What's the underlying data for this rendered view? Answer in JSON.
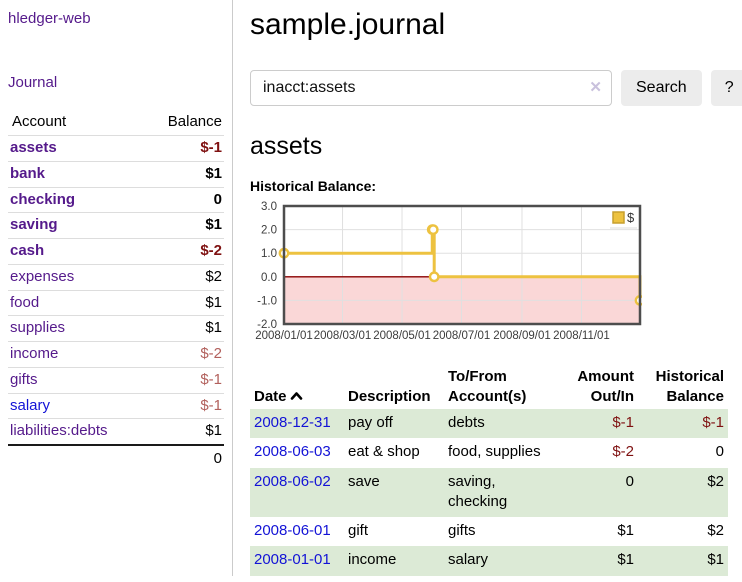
{
  "app": {
    "title": "hledger-web"
  },
  "sidebar": {
    "journal_link": "Journal",
    "accounts_table": {
      "headers": {
        "account": "Account",
        "balance": "Balance"
      },
      "rows": [
        {
          "name": "assets",
          "depth": 1,
          "bold": true,
          "balance": "$-1",
          "neg": "dark"
        },
        {
          "name": "bank",
          "depth": 2,
          "bold": true,
          "balance": "$1",
          "neg": "none"
        },
        {
          "name": "checking",
          "depth": 3,
          "bold": true,
          "balance": "0",
          "neg": "none"
        },
        {
          "name": "saving",
          "depth": 3,
          "bold": true,
          "balance": "$1",
          "neg": "none"
        },
        {
          "name": "cash",
          "depth": 2,
          "bold": true,
          "balance": "$-2",
          "neg": "dark"
        },
        {
          "name": "expenses",
          "depth": 1,
          "bold": false,
          "balance": "$2",
          "neg": "none"
        },
        {
          "name": "food",
          "depth": 2,
          "bold": false,
          "balance": "$1",
          "neg": "none"
        },
        {
          "name": "supplies",
          "depth": 2,
          "bold": false,
          "balance": "$1",
          "neg": "none"
        },
        {
          "name": "income",
          "depth": 1,
          "bold": false,
          "balance": "$-2",
          "neg": "light"
        },
        {
          "name": "gifts",
          "depth": 2,
          "bold": false,
          "balance": "$-1",
          "neg": "light"
        },
        {
          "name": "salary",
          "depth": 2,
          "bold": false,
          "balance": "$-1",
          "neg": "light",
          "link_color": "blue"
        },
        {
          "name": "liabilities:debts",
          "depth": 1,
          "bold": false,
          "balance": "$1",
          "neg": "none"
        }
      ],
      "total": "0"
    }
  },
  "header": {
    "title": "sample.journal"
  },
  "search": {
    "value": "inacct:assets",
    "clear_label": "✕",
    "button_label": "Search",
    "help_label": "?"
  },
  "section": {
    "title": "assets",
    "chart_label": "Historical Balance:"
  },
  "chart_data": {
    "type": "line",
    "title": "Historical Balance",
    "step": true,
    "x_range": [
      "2008-01-01",
      "2008-12-31"
    ],
    "ylim": [
      -2,
      3
    ],
    "y_ticks": [
      3.0,
      2.0,
      1.0,
      0.0,
      -1.0,
      -2.0
    ],
    "x_ticks": [
      {
        "label": "2008/01/01",
        "date": "2008-01-01"
      },
      {
        "label": "2008/03/01",
        "date": "2008-03-01"
      },
      {
        "label": "2008/05/01",
        "date": "2008-05-01"
      },
      {
        "label": "2008/07/01",
        "date": "2008-07-01"
      },
      {
        "label": "2008/09/01",
        "date": "2008-09-01"
      },
      {
        "label": "2008/11/01",
        "date": "2008-11-01"
      }
    ],
    "series": [
      {
        "name": "$",
        "color": "#edc240",
        "points": [
          {
            "date": "2008-01-01",
            "value": 1
          },
          {
            "date": "2008-06-01",
            "value": 2
          },
          {
            "date": "2008-06-02",
            "value": 2
          },
          {
            "date": "2008-06-03",
            "value": 0
          },
          {
            "date": "2008-12-31",
            "value": -1
          }
        ]
      }
    ],
    "legend": {
      "label": "$",
      "position": "top-right"
    },
    "colors": {
      "negative_region_fill": "#fad7d7",
      "zero_line": "#8b0000",
      "grid": "#e0e0e0",
      "border": "#4d4d4d",
      "tick_text": "#3c3c3c"
    }
  },
  "register": {
    "headers": {
      "date": "Date",
      "description": "Description",
      "accounts": "To/From Account(s)",
      "amount": "Amount Out/In",
      "balance": "Historical Balance"
    },
    "rows": [
      {
        "date": "2008-12-31",
        "description": "pay off",
        "accounts": "debts",
        "amount": "$-1",
        "amount_neg": true,
        "balance": "$-1",
        "balance_neg": true
      },
      {
        "date": "2008-06-03",
        "description": "eat & shop",
        "accounts": "food, supplies",
        "amount": "$-2",
        "amount_neg": true,
        "balance": "0",
        "balance_neg": false
      },
      {
        "date": "2008-06-02",
        "description": "save",
        "accounts": "saving, checking",
        "amount": "0",
        "amount_neg": false,
        "balance": "$2",
        "balance_neg": false
      },
      {
        "date": "2008-06-01",
        "description": "gift",
        "accounts": "gifts",
        "amount": "$1",
        "amount_neg": false,
        "balance": "$2",
        "balance_neg": false
      },
      {
        "date": "2008-01-01",
        "description": "income",
        "accounts": "salary",
        "amount": "$1",
        "amount_neg": false,
        "balance": "$1",
        "balance_neg": false
      }
    ]
  }
}
